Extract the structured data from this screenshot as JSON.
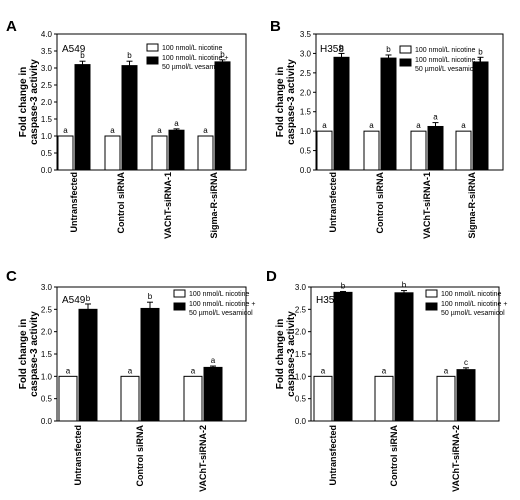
{
  "figure": {
    "ylabel_line1": "Fold change in",
    "ylabel_line2": "caspase-3 activity",
    "legend": {
      "nicotine": "100 nmol/L nicotine",
      "combo_line1": "100 nmol/L nicotine +",
      "combo_line2": "50 µmol/L vesamicol"
    },
    "colors": {
      "nicotine": "#ffffff",
      "combo": "#000000"
    }
  },
  "chart_data": [
    {
      "type": "bar",
      "panel": "A",
      "cell_line": "A549",
      "categories": [
        "Untransfected",
        "Control siRNA",
        "VAChT-siRNA-1",
        "Sigma-R-siRNA"
      ],
      "series": [
        {
          "name": "100 nmol/L nicotine",
          "values": [
            1.0,
            1.0,
            1.0,
            1.0
          ],
          "errors": [
            0,
            0,
            0,
            0
          ],
          "sig": [
            "a",
            "a",
            "a",
            "a"
          ]
        },
        {
          "name": "100 nmol/L nicotine + 50 µmol/L vesamicol",
          "values": [
            3.1,
            3.07,
            1.17,
            3.18
          ],
          "errors": [
            0.1,
            0.13,
            0.04,
            0.06
          ],
          "sig": [
            "b",
            "b",
            "a",
            "b"
          ]
        }
      ],
      "ylim": [
        0,
        4.0
      ],
      "yticks": [
        "0.0",
        "0.5",
        "1.0",
        "1.5",
        "2.0",
        "2.5",
        "3.0",
        "3.5",
        "4.0"
      ]
    },
    {
      "type": "bar",
      "panel": "B",
      "cell_line": "H358",
      "categories": [
        "Untransfected",
        "Control siRNA",
        "VAChT-siRNA-1",
        "Sigma-R-siRNA"
      ],
      "series": [
        {
          "name": "100 nmol/L nicotine",
          "values": [
            1.0,
            1.0,
            1.0,
            1.0
          ],
          "errors": [
            0,
            0,
            0,
            0
          ],
          "sig": [
            "a",
            "a",
            "a",
            "a"
          ]
        },
        {
          "name": "100 nmol/L nicotine + 50 µmol/L vesamicol",
          "values": [
            2.9,
            2.88,
            1.12,
            2.78
          ],
          "errors": [
            0.1,
            0.08,
            0.1,
            0.12
          ],
          "sig": [
            "b",
            "b",
            "a",
            "b"
          ]
        }
      ],
      "ylim": [
        0,
        3.5
      ],
      "yticks": [
        "0.0",
        "0.5",
        "1.0",
        "1.5",
        "2.0",
        "2.5",
        "3.0",
        "3.5"
      ]
    },
    {
      "type": "bar",
      "panel": "C",
      "cell_line": "A549",
      "categories": [
        "Untransfected",
        "Control siRNA",
        "VAChT-siRNA-2"
      ],
      "series": [
        {
          "name": "100 nmol/L nicotine",
          "values": [
            1.0,
            1.0,
            1.0
          ],
          "errors": [
            0,
            0,
            0
          ],
          "sig": [
            "a",
            "a",
            "a"
          ]
        },
        {
          "name": "100 nmol/L nicotine + 50 µmol/L vesamicol",
          "values": [
            2.5,
            2.52,
            1.2
          ],
          "errors": [
            0.12,
            0.14,
            0.03
          ],
          "sig": [
            "b",
            "b",
            "a"
          ]
        }
      ],
      "ylim": [
        0,
        3.0
      ],
      "yticks": [
        "0.0",
        "0.5",
        "1.0",
        "1.5",
        "2.0",
        "2.5",
        "3.0"
      ]
    },
    {
      "type": "bar",
      "panel": "D",
      "cell_line": "H358",
      "categories": [
        "Untransfected",
        "Control siRNA",
        "VAChT-siRNA-2"
      ],
      "series": [
        {
          "name": "100 nmol/L nicotine",
          "values": [
            1.0,
            1.0,
            1.0
          ],
          "errors": [
            0,
            0,
            0
          ],
          "sig": [
            "a",
            "a",
            "a"
          ]
        },
        {
          "name": "100 nmol/L nicotine + 50 µmol/L vesamicol",
          "values": [
            2.88,
            2.87,
            1.15
          ],
          "errors": [
            0.02,
            0.05,
            0.04
          ],
          "sig": [
            "b",
            "b",
            "c"
          ]
        }
      ],
      "ylim": [
        0,
        3.0
      ],
      "yticks": [
        "0.0",
        "0.5",
        "1.0",
        "1.5",
        "2.0",
        "2.5",
        "3.0"
      ]
    }
  ]
}
